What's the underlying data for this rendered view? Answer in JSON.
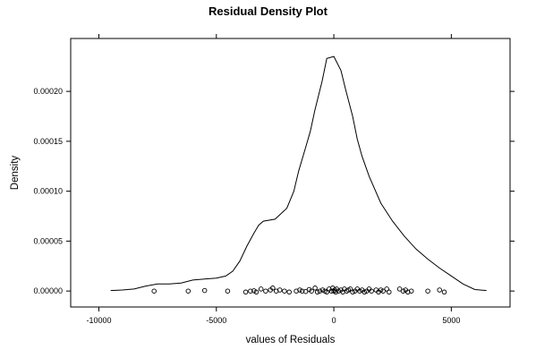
{
  "chart_data": {
    "type": "line",
    "title": "Residual Density Plot",
    "xlabel": "values of Residuals",
    "ylabel": "Density",
    "xlim": [
      -11200,
      7500
    ],
    "ylim": [
      -1.6e-05,
      0.000253
    ],
    "x_ticks": [
      {
        "value": -10000,
        "label": "-10000"
      },
      {
        "value": -5000,
        "label": "-5000"
      },
      {
        "value": 0,
        "label": "0"
      },
      {
        "value": 5000,
        "label": "5000"
      }
    ],
    "y_ticks": [
      {
        "value": 0,
        "label": "0.00000"
      },
      {
        "value": 5e-05,
        "label": "0.00005"
      },
      {
        "value": 0.0001,
        "label": "0.00010"
      },
      {
        "value": 0.00015,
        "label": "0.00015"
      },
      {
        "value": 0.0002,
        "label": "0.00020"
      }
    ],
    "grid": false,
    "series": [
      {
        "kind": "density-curve",
        "x": [
          -9500,
          -9000,
          -8500,
          -8000,
          -7500,
          -7000,
          -6500,
          -6000,
          -5500,
          -5000,
          -4600,
          -4300,
          -4000,
          -3700,
          -3400,
          -3200,
          -3000,
          -2500,
          -2000,
          -1700,
          -1500,
          -1200,
          -1000,
          -800,
          -500,
          -300,
          0,
          300,
          500,
          800,
          1000,
          1200,
          1500,
          2000,
          2500,
          3000,
          3500,
          4000,
          4500,
          5000,
          5500,
          6000,
          6500
        ],
        "y": [
          5e-07,
          1e-06,
          2e-06,
          5e-06,
          7e-06,
          7e-06,
          8e-06,
          1.1e-05,
          1.2e-05,
          1.3e-05,
          1.5e-05,
          2e-05,
          3e-05,
          4.5e-05,
          5.8e-05,
          6.6e-05,
          7e-05,
          7.2e-05,
          8.3e-05,
          0.0001,
          0.00012,
          0.000144,
          0.00016,
          0.000182,
          0.00021,
          0.000233,
          0.000235,
          0.000221,
          0.000202,
          0.000175,
          0.000152,
          0.000135,
          0.000115,
          8.8e-05,
          7e-05,
          5.5e-05,
          4.2e-05,
          3.2e-05,
          2.3e-05,
          1.5e-05,
          7e-06,
          1.5e-06,
          5e-07
        ]
      },
      {
        "kind": "rug-points",
        "x": [
          -7650,
          -6200,
          -5500,
          -4520,
          -3750,
          -3550,
          -3400,
          -3300,
          -3100,
          -2900,
          -2700,
          -2600,
          -2450,
          -2300,
          -2100,
          -1900,
          -1600,
          -1450,
          -1350,
          -1200,
          -1050,
          -950,
          -800,
          -700,
          -600,
          -480,
          -380,
          -300,
          -200,
          -100,
          -50,
          0,
          40,
          80,
          120,
          200,
          300,
          380,
          450,
          550,
          620,
          700,
          800,
          900,
          1000,
          1100,
          1200,
          1300,
          1400,
          1500,
          1600,
          1800,
          1900,
          2000,
          2100,
          2250,
          2350,
          2800,
          2950,
          3050,
          3150,
          3300,
          4000,
          4500,
          4700
        ],
        "y": [
          0.0,
          0.0,
          5e-07,
          0.0,
          -1e-06,
          0.0,
          2e-07,
          -1e-06,
          2e-06,
          0.0,
          1e-06,
          3e-06,
          0.0,
          1e-06,
          0.0,
          -1e-06,
          0.0,
          1e-06,
          0.0,
          -5e-07,
          1.5e-06,
          0.0,
          3e-06,
          -1e-06,
          0.0,
          1e-06,
          0.0,
          -1e-06,
          2e-06,
          0.0,
          3e-06,
          0.0,
          1e-06,
          -1e-06,
          2e-06,
          0.0,
          1e-06,
          -1e-06,
          2e-06,
          0.0,
          1e-06,
          2e-06,
          -1e-06,
          0.0,
          2e-06,
          0.0,
          1e-06,
          -1e-06,
          0.0,
          2e-06,
          0.0,
          1e-06,
          -1e-06,
          1e-06,
          0.0,
          2e-06,
          -1e-06,
          2e-06,
          0.0,
          1e-06,
          -1e-06,
          0.0,
          0.0,
          1e-06,
          -1e-06
        ]
      }
    ]
  }
}
